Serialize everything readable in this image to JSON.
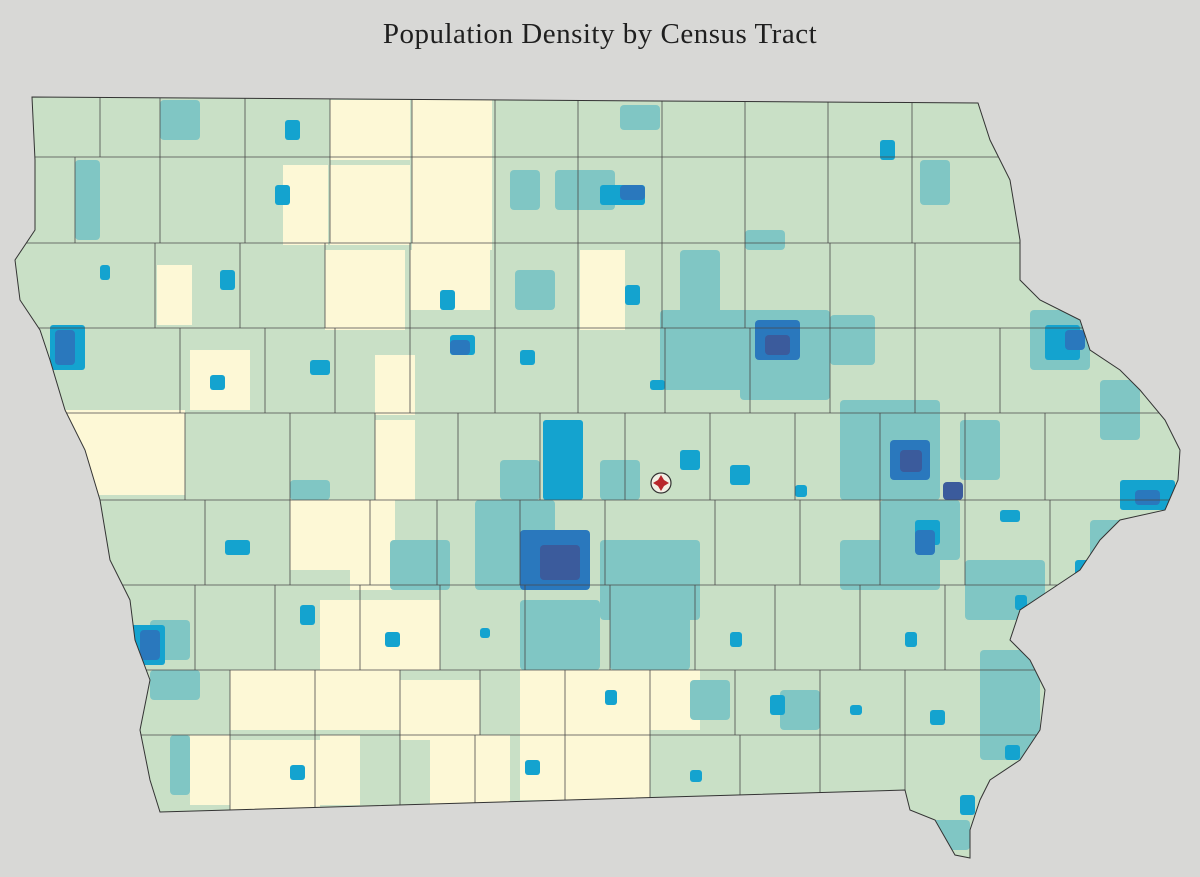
{
  "title": "Population Density by Census Tract"
}
